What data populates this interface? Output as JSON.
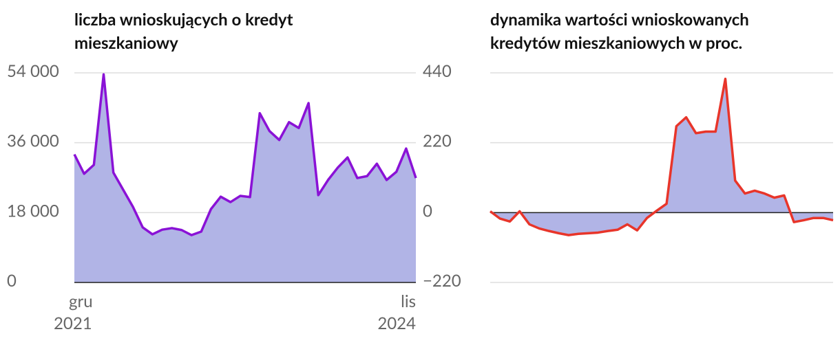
{
  "chart_data": [
    {
      "type": "area",
      "title": "liczba wnioskujących o kredyt mieszkaniowy",
      "categories": [
        "gru 2021",
        null,
        null,
        null,
        null,
        null,
        null,
        null,
        null,
        null,
        null,
        null,
        null,
        null,
        null,
        null,
        null,
        null,
        null,
        null,
        null,
        null,
        null,
        null,
        null,
        null,
        null,
        null,
        null,
        null,
        null,
        null,
        null,
        null,
        null,
        "lis 2024"
      ],
      "values": [
        33000,
        28000,
        30300,
        53600,
        28300,
        23900,
        19500,
        14200,
        12400,
        13600,
        14000,
        13500,
        12200,
        13100,
        18900,
        22100,
        20700,
        22300,
        22000,
        43600,
        39000,
        36700,
        41300,
        39800,
        46200,
        22500,
        26400,
        29600,
        32200,
        26900,
        27400,
        30600,
        26400,
        28500,
        34500,
        26900
      ],
      "color": "#8a12d6",
      "fill": "#b1b4e6",
      "ylim": [
        0,
        54000
      ],
      "yticks": [
        0,
        {
          "value": 18000,
          "label": "18 000"
        },
        {
          "value": 36000,
          "label": "36 000"
        },
        {
          "value": 54000,
          "label": "54 000"
        }
      ],
      "grid": true
    },
    {
      "type": "area",
      "title": "dynamika wartości wnioskowanych kredytów mieszkaniowych w proc.",
      "values": [
        4,
        -19,
        -28,
        4,
        -37,
        -50,
        -58,
        -65,
        -71,
        -67,
        -65,
        -63,
        -58,
        -54,
        -37,
        -56,
        -17,
        6,
        28,
        272,
        300,
        250,
        255,
        255,
        421,
        101,
        60,
        69,
        60,
        47,
        54,
        -30,
        -24,
        -17,
        -17,
        -24
      ],
      "color": "#e8352a",
      "fill": "#b1b4e6",
      "ylim": [
        -220,
        440
      ],
      "yticks": [
        {
          "value": -220,
          "label": "−220"
        },
        0,
        220,
        440
      ],
      "grid": true
    }
  ]
}
